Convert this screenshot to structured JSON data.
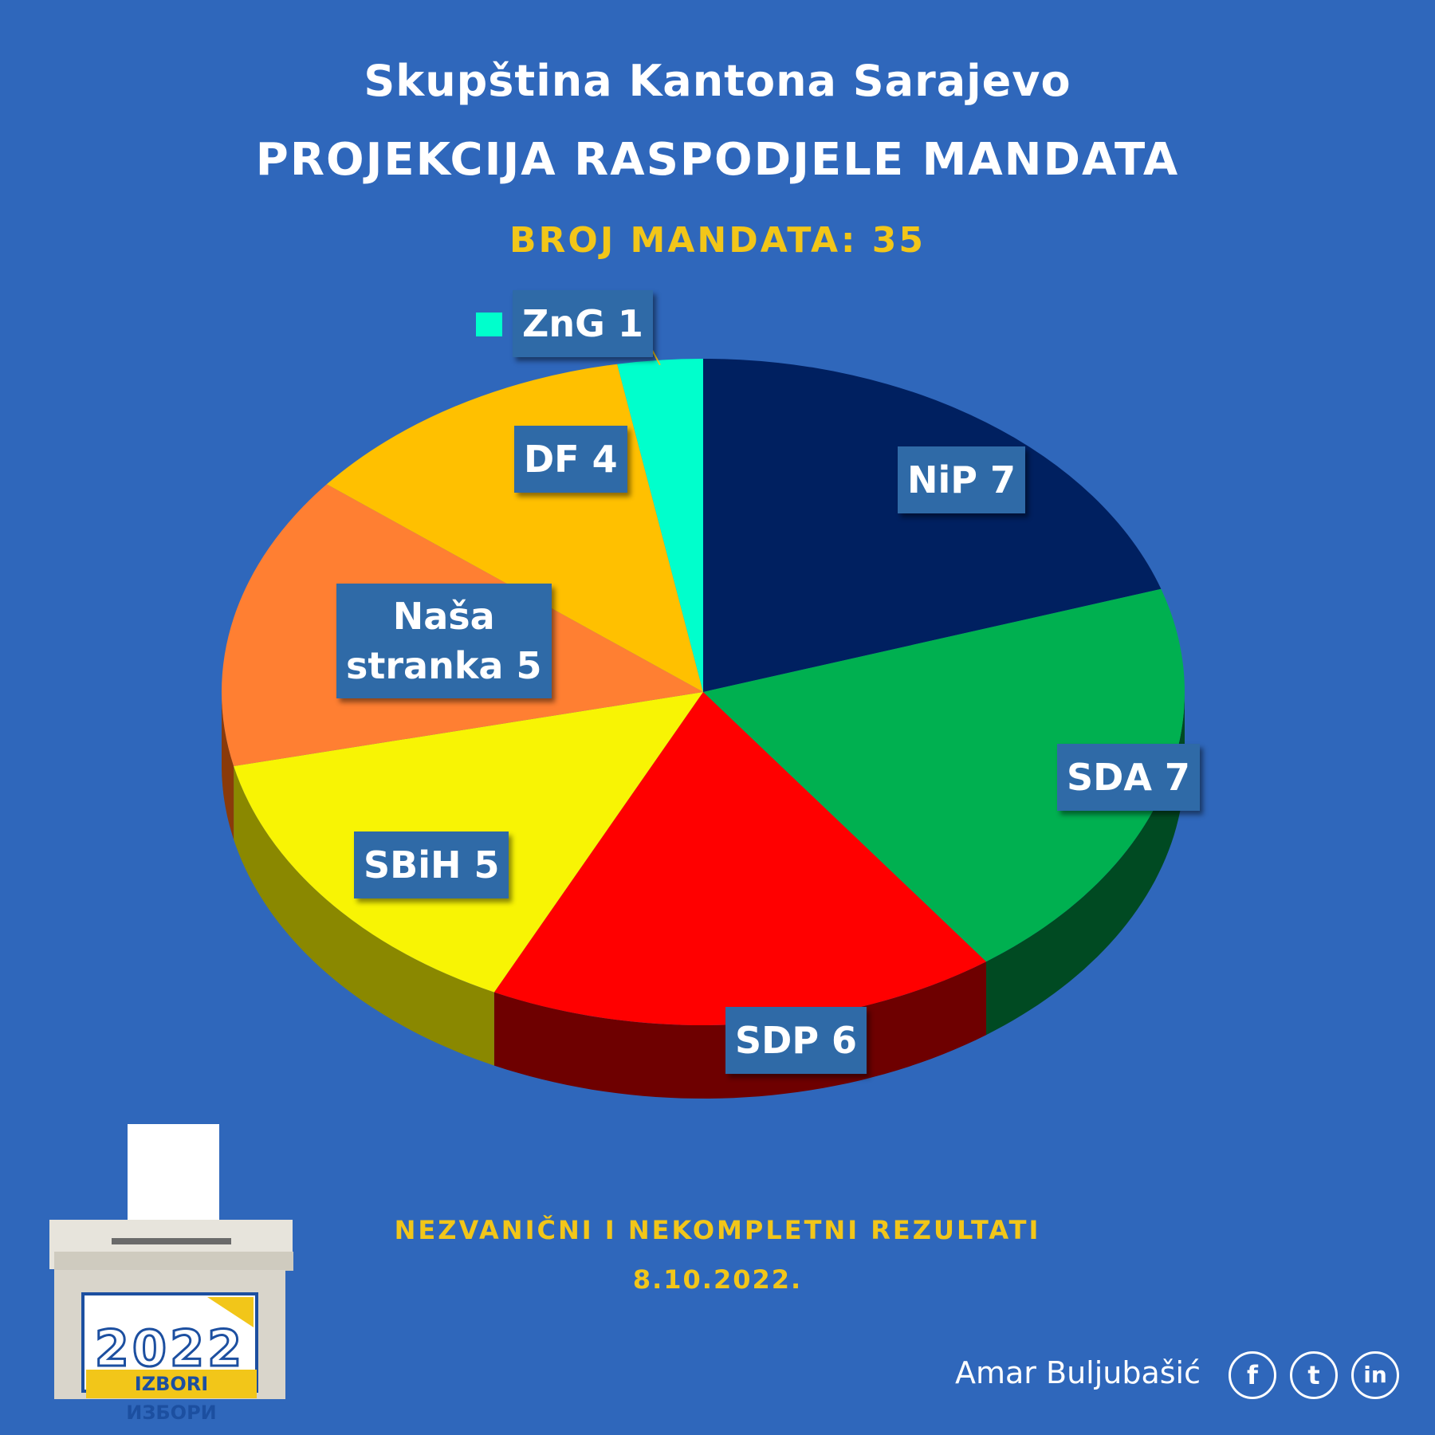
{
  "header": {
    "title": "Skupština Kantona Sarajevo",
    "subtitle": "PROJEKCIJA RASPODJELE MANDATA",
    "total": "BROJ MANDATA: 35"
  },
  "chart_data": {
    "type": "pie",
    "total": 35,
    "slices": [
      {
        "name": "NiP",
        "value": 7,
        "label": "NiP 7",
        "color": "#002060",
        "side": "#001233"
      },
      {
        "name": "SDA",
        "value": 7,
        "label": "SDA 7",
        "color": "#00b050",
        "side": "#004a22"
      },
      {
        "name": "SDP",
        "value": 6,
        "label": "SDP 6",
        "color": "#ff0000",
        "side": "#6e0000"
      },
      {
        "name": "SBiH",
        "value": 5,
        "label": "SBiH 5",
        "color": "#f8f404",
        "side": "#8a8800"
      },
      {
        "name": "Naša stranka",
        "value": 5,
        "label_line1": "Naša",
        "label_line2": "stranka 5",
        "color": "#ff7f32",
        "side": "#8a3a0a"
      },
      {
        "name": "DF",
        "value": 4,
        "label": "DF 4",
        "color": "#ffc000",
        "side": "#8a6500"
      },
      {
        "name": "ZnG",
        "value": 1,
        "label": "ZnG 1",
        "color": "#00ffcc",
        "side": "#007a62"
      }
    ]
  },
  "footer": {
    "note": "NEZVANIČNI I NEKOMPLETNI REZULTATI",
    "date": "8.10.2022.",
    "author": "Amar Buljubašić",
    "social": [
      "facebook-icon",
      "twitter-icon",
      "linkedin-icon"
    ]
  },
  "logo": {
    "year": "2022",
    "text": "IZBORI ИЗБОРИ"
  }
}
